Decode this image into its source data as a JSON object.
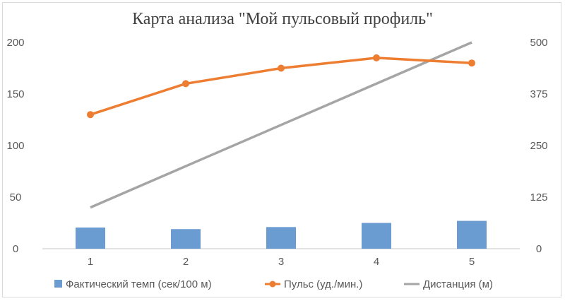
{
  "chart_data": {
    "type": "bar+line",
    "title": "Карта анализа \"Мой пульсовый профиль\"",
    "categories": [
      "1",
      "2",
      "3",
      "4",
      "5"
    ],
    "y_left": {
      "min": 0,
      "max": 200,
      "ticks": [
        "0",
        "50",
        "100",
        "150",
        "200"
      ]
    },
    "y_right": {
      "min": 0,
      "max": 500,
      "ticks": [
        "0",
        "125",
        "250",
        "375",
        "500"
      ]
    },
    "grid": false,
    "legend_position": "bottom",
    "series": [
      {
        "name": "Фактический темп (сек/100 м)",
        "kind": "bar",
        "axis": "left",
        "color": "#6a9bd1",
        "values": [
          20.5,
          19,
          21,
          25,
          27
        ]
      },
      {
        "name": "Пульс (уд./мин.)",
        "kind": "line-marker",
        "axis": "left",
        "color": "#ed7d31",
        "values": [
          130,
          160,
          175,
          185,
          180
        ]
      },
      {
        "name": "Дистанция (м)",
        "kind": "line",
        "axis": "right",
        "color": "#a5a5a5",
        "values": [
          100,
          200,
          300,
          400,
          500
        ]
      }
    ]
  }
}
